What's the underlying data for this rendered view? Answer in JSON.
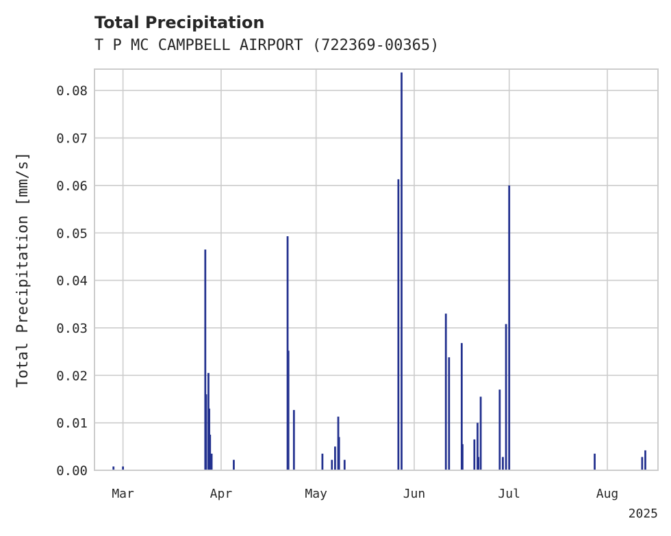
{
  "chart_data": {
    "type": "bar",
    "title": "Total Precipitation",
    "subtitle": "T P MC CAMPBELL AIRPORT (722369-00365)",
    "xlabel": "",
    "ylabel": "Total Precipitation [mm/s]",
    "ylim": [
      0,
      0.0845
    ],
    "xlim": [
      "2025-02-20",
      "2025-08-17"
    ],
    "y_ticks": [
      "0.00",
      "0.01",
      "0.02",
      "0.03",
      "0.04",
      "0.05",
      "0.06",
      "0.07",
      "0.08"
    ],
    "x_ticks": [
      {
        "date": "2025-03-01",
        "label": "Mar"
      },
      {
        "date": "2025-04-01",
        "label": "Apr"
      },
      {
        "date": "2025-05-01",
        "label": "May"
      },
      {
        "date": "2025-06-01",
        "label": "Jun"
      },
      {
        "date": "2025-07-01",
        "label": "Jul"
      },
      {
        "date": "2025-08-01",
        "label": "Aug"
      }
    ],
    "x_offset_label": "2025",
    "grid": true,
    "series": [
      {
        "color": "#23318f",
        "x": [
          "2025-02-26",
          "2025-03-01",
          "2025-03-27",
          "2025-03-27",
          "2025-03-28",
          "2025-03-28",
          "2025-03-28",
          "2025-03-29",
          "2025-04-05",
          "2025-04-22",
          "2025-04-22",
          "2025-04-24",
          "2025-05-03",
          "2025-05-06",
          "2025-05-07",
          "2025-05-08",
          "2025-05-08",
          "2025-05-10",
          "2025-05-27",
          "2025-05-28",
          "2025-06-11",
          "2025-06-12",
          "2025-06-16",
          "2025-06-16",
          "2025-06-20",
          "2025-06-21",
          "2025-06-21",
          "2025-06-22",
          "2025-06-28",
          "2025-06-29",
          "2025-06-30",
          "2025-07-01",
          "2025-07-28",
          "2025-08-12",
          "2025-08-13"
        ],
        "values": [
          0.0008,
          0.0008,
          0.0465,
          0.016,
          0.0205,
          0.013,
          0.0075,
          0.0035,
          0.0022,
          0.0493,
          0.0252,
          0.0127,
          0.0035,
          0.0022,
          0.005,
          0.0113,
          0.007,
          0.0022,
          0.0613,
          0.0838,
          0.033,
          0.0238,
          0.0268,
          0.0055,
          0.0065,
          0.01,
          0.0028,
          0.0155,
          0.017,
          0.0028,
          0.0308,
          0.06,
          0.0035,
          0.0028,
          0.0042
        ]
      }
    ]
  }
}
